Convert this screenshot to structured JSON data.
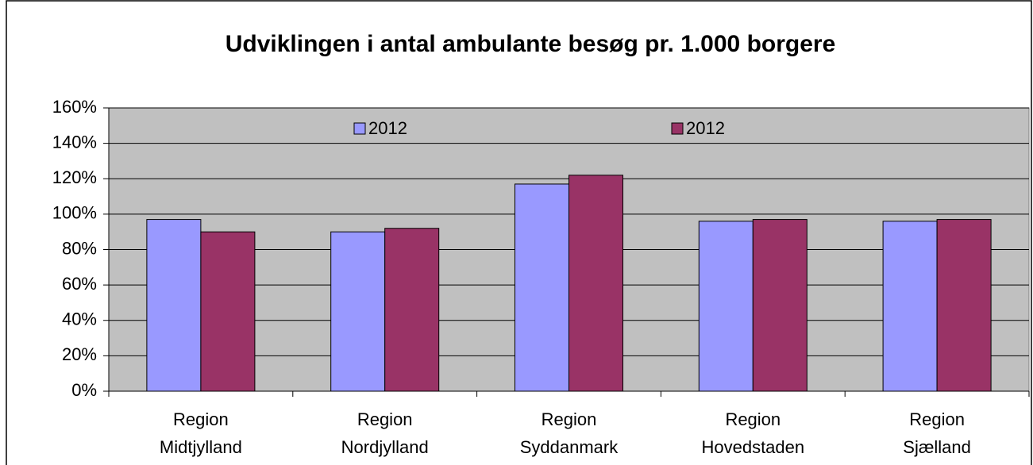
{
  "chart_data": {
    "type": "bar",
    "title": "Udviklingen i antal ambulante besøg pr. 1.000 borgere",
    "categories": [
      "Region Midtjylland",
      "Region Nordjylland",
      "Region Syddanmark",
      "Region Hovedstaden",
      "Region Sjælland"
    ],
    "series": [
      {
        "name": "2012",
        "color": "#9999ff",
        "values": [
          97,
          90,
          117,
          96,
          96
        ]
      },
      {
        "name": "2012",
        "color": "#993366",
        "values": [
          90,
          92,
          122,
          97,
          97
        ]
      }
    ],
    "ylim": [
      0,
      160
    ],
    "yticks": [
      {
        "value": 0,
        "label": "0%"
      },
      {
        "value": 20,
        "label": "20%"
      },
      {
        "value": 40,
        "label": "40%"
      },
      {
        "value": 60,
        "label": "60%"
      },
      {
        "value": 80,
        "label": "80%"
      },
      {
        "value": 100,
        "label": "100%"
      },
      {
        "value": 120,
        "label": "120%"
      },
      {
        "value": 140,
        "label": "140%"
      },
      {
        "value": 160,
        "label": "160%"
      }
    ],
    "grid": true,
    "legend": "top"
  }
}
